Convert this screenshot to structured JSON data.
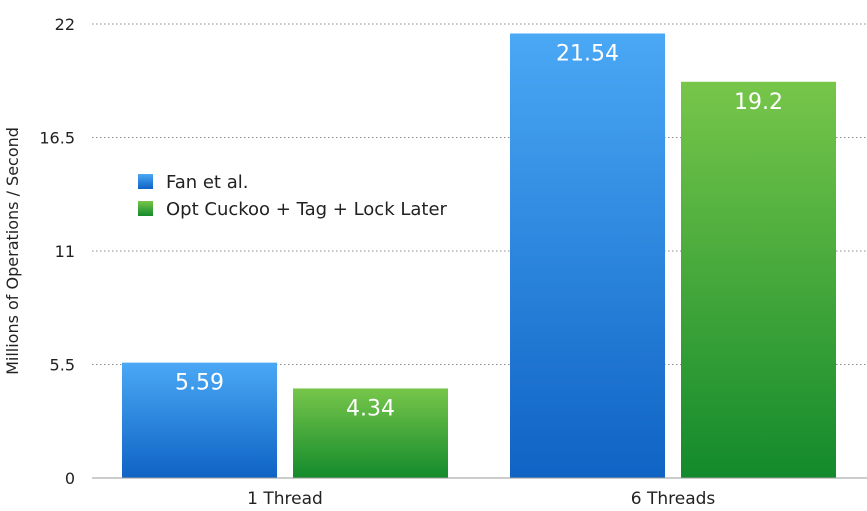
{
  "chart_data": {
    "type": "bar",
    "categories": [
      "1 Thread",
      "6 Threads"
    ],
    "series": [
      {
        "name": "Fan et al.",
        "values": [
          5.59,
          21.54
        ],
        "value_labels": [
          "5.59",
          "21.54"
        ],
        "color": "#1a78d8"
      },
      {
        "name": "Opt Cuckoo + Tag + Lock Later",
        "values": [
          4.34,
          19.2
        ],
        "value_labels": [
          "4.34",
          "19.2"
        ],
        "color": "#3aa33c"
      }
    ],
    "ylabel": "Millions of Operations / Second",
    "xlabel": "",
    "ylim": [
      0,
      22
    ],
    "yticks": [
      0,
      5.5,
      11,
      16.5,
      22
    ],
    "ytick_labels": [
      "0",
      "5.5",
      "11",
      "16.5",
      "22"
    ],
    "grid": "horizontal dotted",
    "legend_position": "upper-left"
  }
}
